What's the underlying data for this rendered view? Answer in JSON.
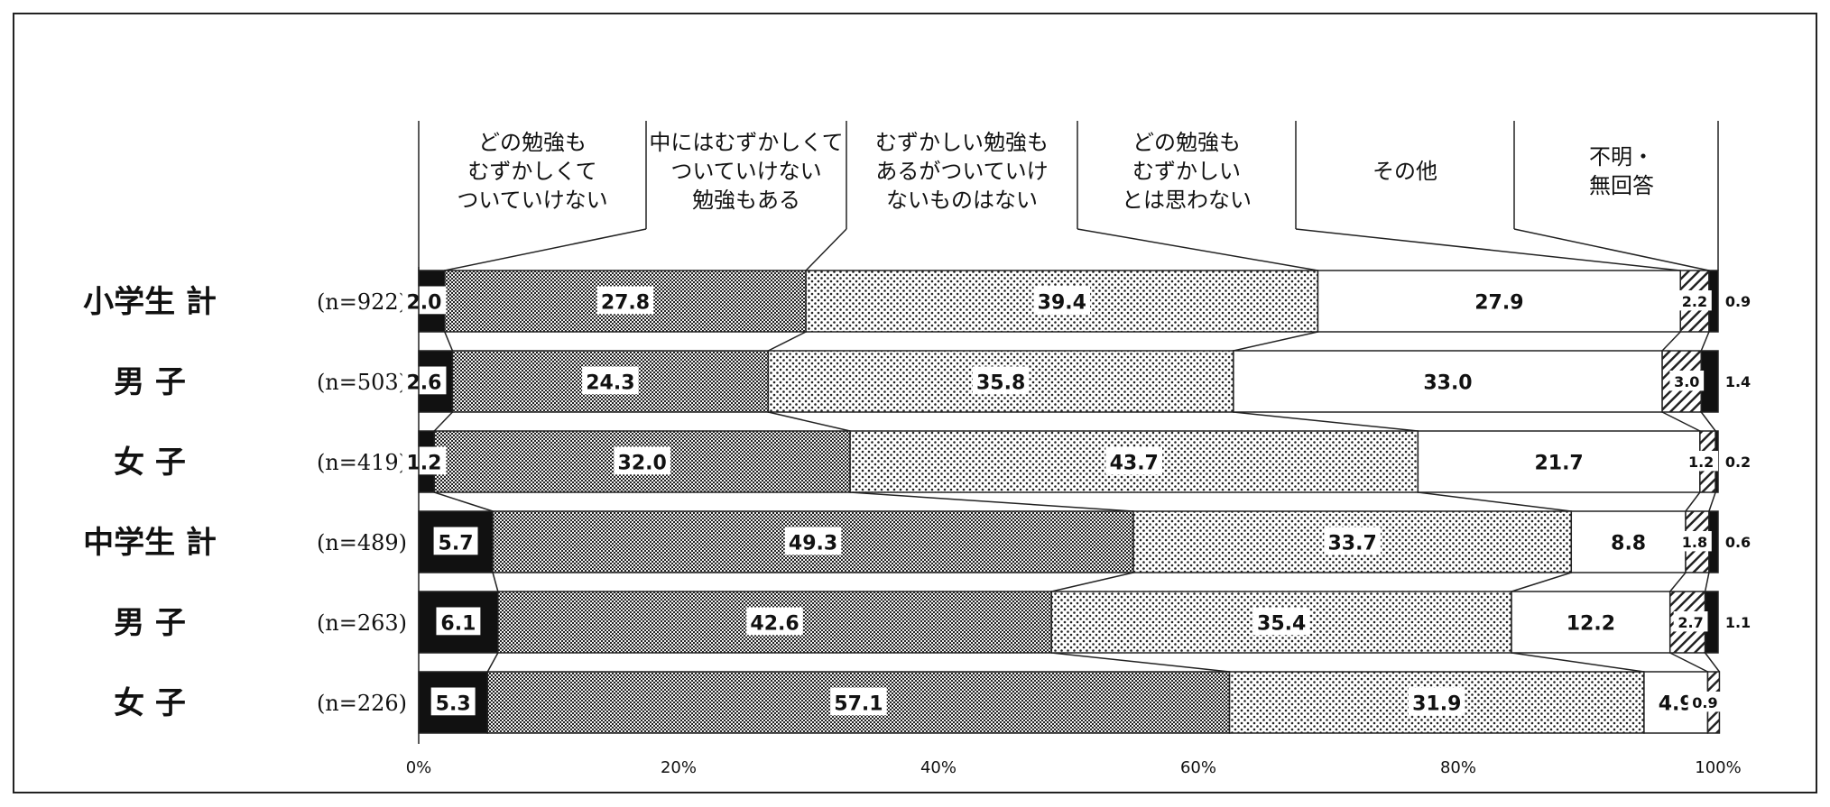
{
  "chart_data": {
    "type": "bar",
    "orientation": "horizontal",
    "stacked": true,
    "percent": true,
    "xlim": [
      0,
      100
    ],
    "x_ticks": [
      "0%",
      "20%",
      "40%",
      "60%",
      "80%",
      "100%"
    ],
    "grid": false,
    "legend_position": "top (column headers above bars)",
    "categories": [
      "小学生 計",
      "男 子",
      "女 子",
      "中学生 計",
      "男 子",
      "女 子"
    ],
    "sample_sizes": [
      "(n=922)",
      "(n=503)",
      "(n=419)",
      "(n=489)",
      "(n=263)",
      "(n=226)"
    ],
    "series": [
      {
        "name": "どの勉強も むずかしくて ついていけない",
        "header_lines": [
          "どの勉強も",
          "むずかしくて",
          "ついていけない"
        ],
        "pattern": "solid-black",
        "values": [
          2.0,
          2.6,
          1.2,
          5.7,
          6.1,
          5.3
        ]
      },
      {
        "name": "中にはむずかしくて ついていけない 勉強もある",
        "header_lines": [
          "中にはむずかしくて",
          "ついていけない",
          "勉強もある"
        ],
        "pattern": "dense-checker",
        "values": [
          27.8,
          24.3,
          32.0,
          49.3,
          42.6,
          57.1
        ]
      },
      {
        "name": "むずかしい勉強も あるがついていけ ないものはない",
        "header_lines": [
          "むずかしい勉強も",
          "あるがついていけ",
          "ないものはない"
        ],
        "pattern": "dots",
        "values": [
          39.4,
          35.8,
          43.7,
          33.7,
          35.4,
          31.9
        ]
      },
      {
        "name": "どの勉強も むずかしい とは思わない",
        "header_lines": [
          "どの勉強も",
          "むずかしい",
          "とは思わない"
        ],
        "pattern": "white",
        "values": [
          27.9,
          33.0,
          21.7,
          8.8,
          12.2,
          4.9
        ]
      },
      {
        "name": "その他",
        "header_lines": [
          "その他"
        ],
        "pattern": "diagonal-hatch",
        "values": [
          2.2,
          3.0,
          1.2,
          1.8,
          2.7,
          0.9
        ]
      },
      {
        "name": "不明・ 無回答",
        "header_lines": [
          "不明・",
          "無回答"
        ],
        "pattern": "solid-black",
        "values": [
          0.9,
          1.4,
          0.2,
          0.6,
          1.1,
          null
        ]
      }
    ]
  }
}
